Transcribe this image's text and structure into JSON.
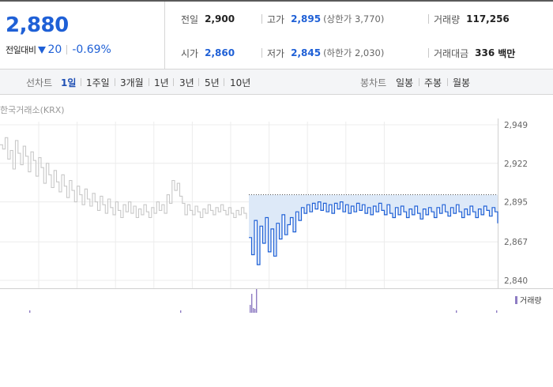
{
  "quote": {
    "price": "2,880",
    "change_label": "전일대비",
    "change_value": "20",
    "change_rate": "-0.69%",
    "prev_close": {
      "label": "전일",
      "value": "2,900"
    },
    "high": {
      "label": "고가",
      "value": "2,895",
      "sub": "(상한가 3,770)"
    },
    "volume": {
      "label": "거래량",
      "value": "117,256"
    },
    "open": {
      "label": "시가",
      "value": "2,860"
    },
    "low": {
      "label": "저가",
      "value": "2,845",
      "sub": "(하한가 2,030)"
    },
    "amount": {
      "label": "거래대금",
      "value": "336",
      "unit": "백만"
    }
  },
  "toolbar": {
    "line_label": "선차트",
    "periods": [
      "1일",
      "1주일",
      "3개월",
      "1년",
      "3년",
      "5년",
      "10년"
    ],
    "active_period": "1일",
    "candle_label": "봉차트",
    "candles": [
      "일봉",
      "주봉",
      "월봉"
    ]
  },
  "chart": {
    "exchange": "한국거래소(KRX)",
    "y_ticks": [
      "2,949",
      "2,922",
      "2,895",
      "2,867",
      "2,840"
    ],
    "volume_legend": "거래량",
    "colors": {
      "price_up": "#1f60d6",
      "prev_day": "#c8c8c8",
      "fill": "#dde9f8",
      "volume": "#8e7cc3"
    }
  },
  "chart_data": {
    "type": "line",
    "ylim": [
      2840,
      2949
    ],
    "reference_prev_close": 2900,
    "series": [
      {
        "values": [
          2935,
          2932,
          2940,
          2925,
          2931,
          2918,
          2938,
          2929,
          2921,
          2934,
          2927,
          2916,
          2930,
          2924,
          2913,
          2926,
          2919,
          2908,
          2922,
          2914,
          2905,
          2917,
          2909,
          2902,
          2914,
          2906,
          2898,
          2910,
          2903,
          2895,
          2906,
          2900,
          2893,
          2904,
          2897,
          2892,
          2901,
          2895,
          2889,
          2899,
          2893,
          2887,
          2897,
          2891,
          2886,
          2895,
          2889,
          2884,
          2893,
          2888,
          2895,
          2887,
          2892,
          2884,
          2890,
          2886,
          2893,
          2888,
          2884,
          2891,
          2887,
          2895,
          2889,
          2893,
          2887,
          2900,
          2894,
          2910,
          2903,
          2908,
          2899,
          2894,
          2886,
          2893,
          2889,
          2886,
          2892,
          2888,
          2884,
          2890,
          2887,
          2893,
          2889,
          2886,
          2891,
          2888,
          2893,
          2889,
          2886,
          2891,
          2887,
          2884,
          2889,
          2886,
          2891,
          2887,
          2883
        ]
      },
      {
        "values": [
          2870,
          2858,
          2882,
          2851,
          2878,
          2866,
          2884,
          2860,
          2876,
          2857,
          2880,
          2869,
          2886,
          2872,
          2879,
          2884,
          2874,
          2888,
          2882,
          2891,
          2887,
          2893,
          2888,
          2894,
          2890,
          2895,
          2889,
          2894,
          2888,
          2893,
          2887,
          2894,
          2890,
          2895,
          2888,
          2893,
          2887,
          2892,
          2888,
          2894,
          2889,
          2893,
          2887,
          2891,
          2886,
          2892,
          2888,
          2894,
          2889,
          2886,
          2893,
          2887,
          2884,
          2891,
          2886,
          2892,
          2888,
          2884,
          2890,
          2886,
          2892,
          2887,
          2883,
          2890,
          2886,
          2891,
          2888,
          2884,
          2891,
          2887,
          2893,
          2888,
          2885,
          2891,
          2887,
          2893,
          2888,
          2884,
          2890,
          2886,
          2892,
          2888,
          2884,
          2890,
          2886,
          2892,
          2889,
          2885,
          2891,
          2888,
          2880
        ]
      }
    ]
  }
}
